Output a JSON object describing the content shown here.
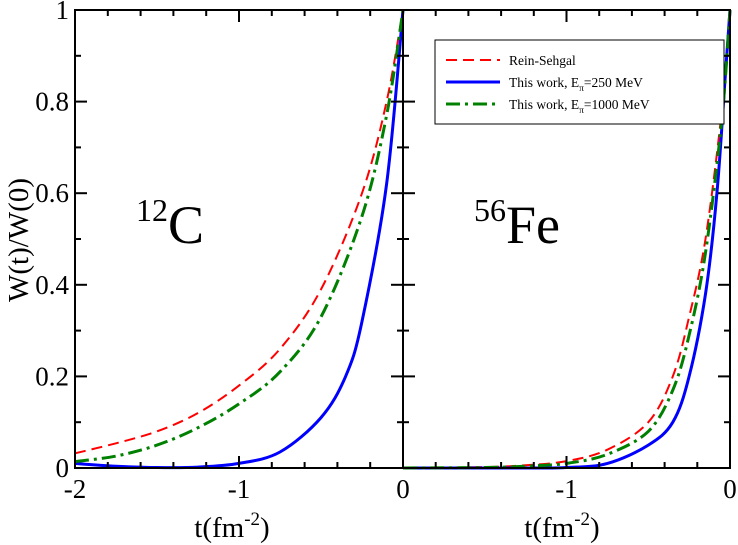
{
  "chart_data": [
    {
      "type": "line",
      "panel": "left",
      "annotation": {
        "superscript": "12",
        "symbol": "C"
      },
      "xlabel": {
        "base": "t(fm",
        "superscript": "-2",
        "close": ")"
      },
      "ylabel": "W(t)/W(0)",
      "xlim": [
        -2,
        0
      ],
      "ylim": [
        0,
        1
      ],
      "xticks": [
        "-2",
        "-1",
        "0"
      ],
      "yticks": [
        "0",
        "0.2",
        "0.4",
        "0.6",
        "0.8",
        "1"
      ],
      "grid": false,
      "series": [
        {
          "name": "Rein-Sehgal",
          "color": "#ff0000",
          "style": "dashed",
          "x": [
            -2,
            -1.75,
            -1.5,
            -1.25,
            -1,
            -0.75,
            -0.5,
            -0.25,
            -0.1,
            0
          ],
          "y": [
            0.032,
            0.054,
            0.08,
            0.12,
            0.18,
            0.26,
            0.39,
            0.6,
            0.8,
            1.0
          ]
        },
        {
          "name": "This work, Eπ=250 MeV",
          "color": "#0000ff",
          "style": "solid",
          "x": [
            -2,
            -1.75,
            -1.5,
            -1.25,
            -1,
            -0.75,
            -0.5,
            -0.35,
            -0.25,
            -0.1,
            0
          ],
          "y": [
            0.01,
            0.004,
            0.001,
            0.002,
            0.01,
            0.035,
            0.11,
            0.2,
            0.32,
            0.62,
            1.0
          ]
        },
        {
          "name": "This work, Eπ=1000 MeV",
          "color": "#008000",
          "style": "dashdot",
          "x": [
            -2,
            -1.75,
            -1.5,
            -1.25,
            -1,
            -0.75,
            -0.5,
            -0.25,
            -0.1,
            0
          ],
          "y": [
            0.014,
            0.026,
            0.05,
            0.088,
            0.14,
            0.21,
            0.33,
            0.55,
            0.77,
            1.0
          ]
        }
      ]
    },
    {
      "type": "line",
      "panel": "right",
      "annotation": {
        "superscript": "56",
        "symbol": "Fe"
      },
      "xlabel": {
        "base": "t(fm",
        "superscript": "-2",
        "close": ")"
      },
      "xlim": [
        -2,
        0
      ],
      "ylim": [
        0,
        1
      ],
      "xticks": [
        "-1",
        "0"
      ],
      "grid": false,
      "legend": {
        "placement": "top-right",
        "entries": [
          {
            "text": "Rein-Sehgal",
            "color": "#ff0000",
            "style": "dashed"
          },
          {
            "base": "This work, E",
            "sub": "π",
            "rest": "=250 MeV",
            "color": "#0000ff",
            "style": "solid"
          },
          {
            "base": "This work, E",
            "sub": "π",
            "rest": "=1000 MeV",
            "color": "#008000",
            "style": "dashdot"
          }
        ]
      },
      "series": [
        {
          "name": "Rein-Sehgal",
          "color": "#ff0000",
          "style": "dashed",
          "x": [
            -2,
            -1.5,
            -1.25,
            -1,
            -0.75,
            -0.5,
            -0.35,
            -0.25,
            -0.15,
            -0.05,
            0
          ],
          "y": [
            0,
            0.002,
            0.006,
            0.015,
            0.04,
            0.1,
            0.2,
            0.33,
            0.5,
            0.78,
            1.0
          ]
        },
        {
          "name": "This work, Eπ=250 MeV",
          "color": "#0000ff",
          "style": "solid",
          "x": [
            -2,
            -1.25,
            -1,
            -0.75,
            -0.5,
            -0.35,
            -0.25,
            -0.15,
            -0.08,
            -0.03,
            0
          ],
          "y": [
            0,
            0.0,
            0.001,
            0.01,
            0.05,
            0.1,
            0.2,
            0.38,
            0.6,
            0.85,
            1.0
          ]
        },
        {
          "name": "This work, Eπ=1000 MeV",
          "color": "#008000",
          "style": "dashdot",
          "x": [
            -2,
            -1.5,
            -1.25,
            -1,
            -0.75,
            -0.5,
            -0.35,
            -0.25,
            -0.15,
            -0.05,
            0
          ],
          "y": [
            0,
            0.001,
            0.004,
            0.01,
            0.03,
            0.08,
            0.17,
            0.29,
            0.47,
            0.76,
            1.0
          ]
        }
      ]
    }
  ]
}
